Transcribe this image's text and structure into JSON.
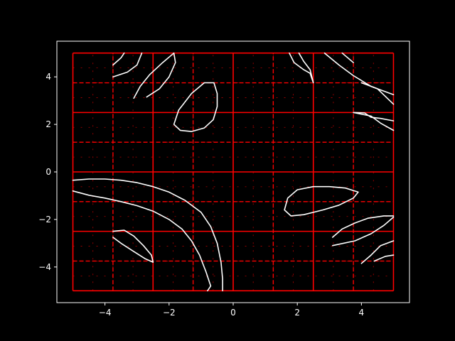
{
  "chart_data": {
    "type": "line",
    "title": "",
    "xlabel": "",
    "ylabel": "",
    "xlim": [
      -5.5,
      5.5
    ],
    "ylim": [
      -5.5,
      5.5
    ],
    "xticks": [
      -4,
      -2,
      0,
      2,
      4
    ],
    "yticks": [
      -4,
      -2,
      0,
      2,
      4
    ],
    "xtick_labels": [
      "−4",
      "−2",
      "0",
      "2",
      "4"
    ],
    "ytick_labels": [
      "−4",
      "−2",
      "0",
      "2",
      "4"
    ],
    "colors": {
      "background": "#000000",
      "foreground": "#ffffff",
      "grid_lines": "#ff0000",
      "contour": "#ffffff"
    },
    "grid": {
      "description": "adaptive quadtree subdivision over [-5,5]x[-5,5]",
      "solid_vertical_x": [
        -5,
        -2.5,
        0,
        2.5,
        5
      ],
      "solid_horizontal_y": [
        -5,
        -2.5,
        0,
        2.5,
        5
      ],
      "dashed_vertical_x": [
        -3.75,
        -1.25,
        1.25,
        3.75
      ],
      "dashed_horizontal_y": [
        -3.75,
        -1.25,
        1.25,
        3.75
      ]
    },
    "series": [
      {
        "points": [
          [
            -5.0,
            -0.35
          ],
          [
            -4.5,
            -0.3
          ],
          [
            -4.0,
            -0.3
          ],
          [
            -3.5,
            -0.35
          ],
          [
            -3.0,
            -0.45
          ],
          [
            -2.5,
            -0.62
          ],
          [
            -2.0,
            -0.85
          ],
          [
            -1.5,
            -1.2
          ],
          [
            -1.0,
            -1.7
          ],
          [
            -0.7,
            -2.3
          ],
          [
            -0.5,
            -3.0
          ],
          [
            -0.38,
            -3.8
          ],
          [
            -0.33,
            -4.5
          ],
          [
            -0.33,
            -5.0
          ]
        ]
      },
      {
        "points": [
          [
            -5.0,
            -0.8
          ],
          [
            -4.5,
            -0.98
          ],
          [
            -4.0,
            -1.1
          ],
          [
            -3.5,
            -1.25
          ],
          [
            -3.0,
            -1.42
          ],
          [
            -2.5,
            -1.65
          ],
          [
            -2.0,
            -2.0
          ],
          [
            -1.6,
            -2.4
          ],
          [
            -1.3,
            -2.9
          ],
          [
            -1.05,
            -3.5
          ],
          [
            -0.85,
            -4.2
          ],
          [
            -0.7,
            -4.8
          ],
          [
            -0.8,
            -5.0
          ]
        ]
      },
      {
        "points": [
          [
            -3.75,
            -2.5
          ],
          [
            -3.4,
            -2.45
          ],
          [
            -3.1,
            -2.7
          ],
          [
            -2.8,
            -3.1
          ],
          [
            -2.55,
            -3.5
          ],
          [
            -2.5,
            -3.8
          ],
          [
            -2.75,
            -3.65
          ],
          [
            -3.1,
            -3.35
          ],
          [
            -3.5,
            -3.0
          ],
          [
            -3.75,
            -2.75
          ]
        ]
      },
      {
        "points": [
          [
            -3.75,
            4.5
          ],
          [
            -3.5,
            4.8
          ],
          [
            -3.4,
            5.0
          ]
        ]
      },
      {
        "points": [
          [
            -3.75,
            4.0
          ],
          [
            -3.3,
            4.2
          ],
          [
            -3.0,
            4.5
          ],
          [
            -2.85,
            5.0
          ]
        ]
      },
      {
        "points": [
          [
            -3.1,
            3.1
          ],
          [
            -2.9,
            3.6
          ],
          [
            -2.6,
            4.1
          ],
          [
            -2.2,
            4.6
          ],
          [
            -1.85,
            5.0
          ],
          [
            -1.8,
            4.6
          ],
          [
            -2.0,
            4.0
          ],
          [
            -2.3,
            3.5
          ],
          [
            -2.7,
            3.15
          ]
        ]
      },
      {
        "points": [
          [
            -0.6,
            3.75
          ],
          [
            -0.5,
            3.3
          ],
          [
            -0.5,
            2.75
          ],
          [
            -0.62,
            2.2
          ],
          [
            -0.9,
            1.85
          ],
          [
            -1.3,
            1.7
          ],
          [
            -1.65,
            1.75
          ],
          [
            -1.85,
            2.0
          ],
          [
            -1.7,
            2.6
          ],
          [
            -1.3,
            3.3
          ],
          [
            -0.9,
            3.75
          ],
          [
            -0.6,
            3.75
          ]
        ]
      },
      {
        "points": [
          [
            1.75,
            5.0
          ],
          [
            1.9,
            4.6
          ],
          [
            2.2,
            4.3
          ],
          [
            2.4,
            4.15
          ],
          [
            2.5,
            3.75
          ],
          [
            2.4,
            4.3
          ],
          [
            2.2,
            4.65
          ],
          [
            2.05,
            5.0
          ]
        ]
      },
      {
        "points": [
          [
            2.85,
            5.0
          ],
          [
            3.3,
            4.5
          ],
          [
            3.75,
            4.05
          ],
          [
            4.3,
            3.6
          ],
          [
            5.0,
            3.25
          ]
        ]
      },
      {
        "points": [
          [
            3.4,
            5.0
          ],
          [
            3.75,
            4.6
          ]
        ]
      },
      {
        "points": [
          [
            4.0,
            3.75
          ],
          [
            4.5,
            3.5
          ],
          [
            5.0,
            2.85
          ]
        ]
      },
      {
        "points": [
          [
            3.75,
            2.5
          ],
          [
            4.1,
            2.48
          ],
          [
            4.3,
            2.3
          ],
          [
            4.6,
            2.25
          ],
          [
            5.0,
            2.15
          ]
        ]
      },
      {
        "points": [
          [
            3.75,
            2.5
          ],
          [
            4.3,
            2.35
          ],
          [
            4.6,
            2.05
          ],
          [
            5.0,
            1.75
          ]
        ]
      },
      {
        "points": [
          [
            2.0,
            -0.75
          ],
          [
            2.5,
            -0.62
          ],
          [
            3.0,
            -0.62
          ],
          [
            3.5,
            -0.68
          ],
          [
            3.9,
            -0.85
          ],
          [
            3.75,
            -1.1
          ],
          [
            3.3,
            -1.4
          ],
          [
            2.8,
            -1.6
          ],
          [
            2.2,
            -1.8
          ],
          [
            1.8,
            -1.85
          ],
          [
            1.6,
            -1.6
          ],
          [
            1.7,
            -1.1
          ],
          [
            2.0,
            -0.75
          ]
        ]
      },
      {
        "points": [
          [
            3.1,
            -2.75
          ],
          [
            3.4,
            -2.4
          ],
          [
            3.8,
            -2.15
          ],
          [
            4.2,
            -1.95
          ],
          [
            4.7,
            -1.85
          ],
          [
            5.0,
            -1.85
          ]
        ]
      },
      {
        "points": [
          [
            3.1,
            -3.1
          ],
          [
            3.8,
            -2.9
          ],
          [
            4.3,
            -2.6
          ],
          [
            4.7,
            -2.25
          ],
          [
            5.0,
            -1.9
          ]
        ]
      },
      {
        "points": [
          [
            4.0,
            -3.85
          ],
          [
            4.3,
            -3.5
          ],
          [
            4.6,
            -3.1
          ],
          [
            5.0,
            -2.9
          ]
        ]
      },
      {
        "points": [
          [
            4.4,
            -3.75
          ],
          [
            4.75,
            -3.55
          ],
          [
            5.0,
            -3.5
          ]
        ]
      }
    ]
  }
}
